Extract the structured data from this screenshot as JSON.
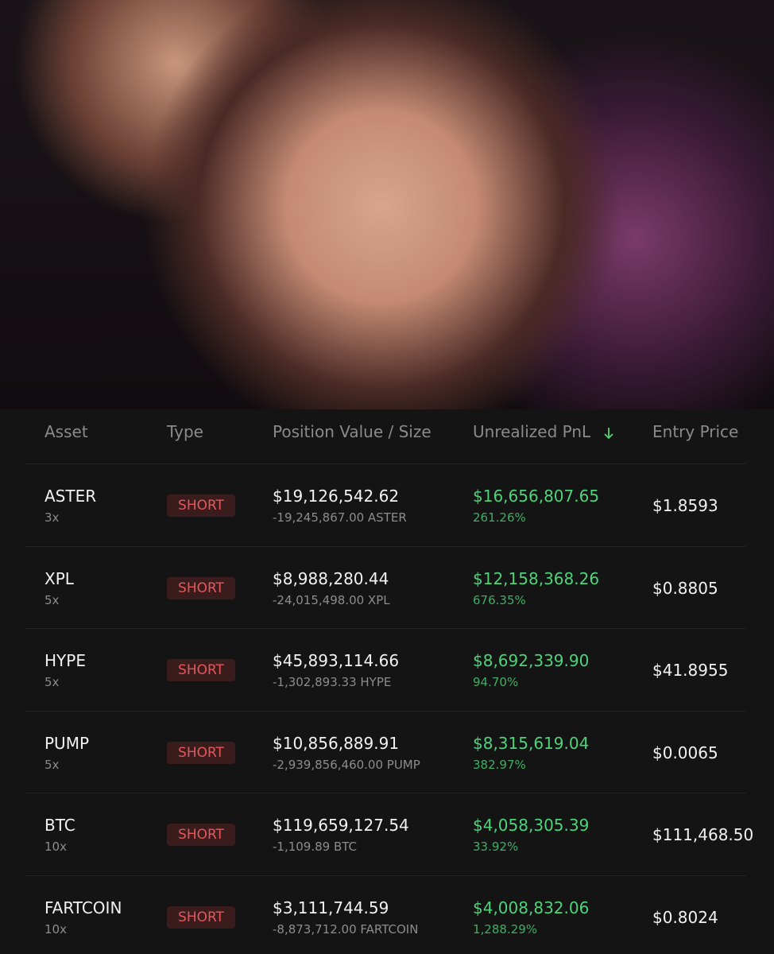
{
  "table": {
    "headers": [
      "Asset",
      "Type",
      "Position Value / Size",
      "Unrealized PnL",
      "Entry Price"
    ],
    "rows": [
      {
        "asset": "ASTER",
        "leverage": "3x",
        "type": "SHORT",
        "value": "$19,126,542.62",
        "size": "-19,245,867.00 ASTER",
        "pnl": "$16,656,807.65",
        "pnl_pct": "261.26%",
        "entry": "$1.8593"
      },
      {
        "asset": "XPL",
        "leverage": "5x",
        "type": "SHORT",
        "value": "$8,988,280.44",
        "size": "-24,015,498.00 XPL",
        "pnl": "$12,158,368.26",
        "pnl_pct": "676.35%",
        "entry": "$0.8805"
      },
      {
        "asset": "HYPE",
        "leverage": "5x",
        "type": "SHORT",
        "value": "$45,893,114.66",
        "size": "-1,302,893.33 HYPE",
        "pnl": "$8,692,339.90",
        "pnl_pct": "94.70%",
        "entry": "$41.8955"
      },
      {
        "asset": "PUMP",
        "leverage": "5x",
        "type": "SHORT",
        "value": "$10,856,889.91",
        "size": "-2,939,856,460.00 PUMP",
        "pnl": "$8,315,619.04",
        "pnl_pct": "382.97%",
        "entry": "$0.0065"
      },
      {
        "asset": "BTC",
        "leverage": "10x",
        "type": "SHORT",
        "value": "$119,659,127.54",
        "size": "-1,109.89 BTC",
        "pnl": "$4,058,305.39",
        "pnl_pct": "33.92%",
        "entry": "$111,468.50"
      },
      {
        "asset": "FARTCOIN",
        "leverage": "10x",
        "type": "SHORT",
        "value": "$3,111,744.59",
        "size": "-8,873,712.00 FARTCOIN",
        "pnl": "$4,008,832.06",
        "pnl_pct": "1,288.29%",
        "entry": "$0.8024"
      }
    ]
  }
}
